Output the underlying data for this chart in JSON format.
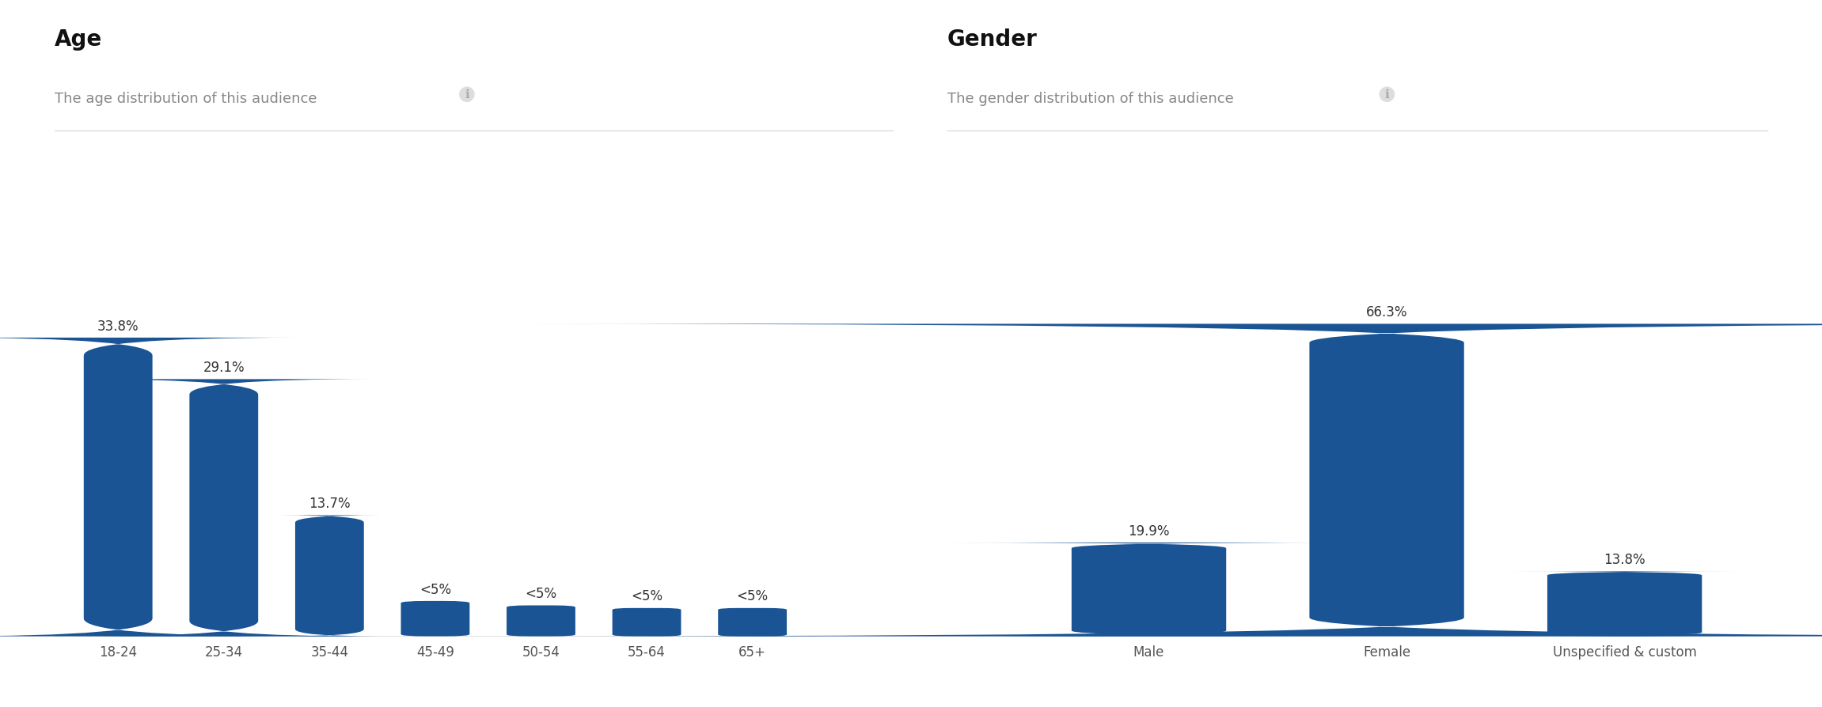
{
  "age": {
    "title": "Age",
    "subtitle": "The age distribution of this audience",
    "categories": [
      "18-24",
      "25-34",
      "35-44",
      "45-49",
      "50-54",
      "55-64",
      "65+"
    ],
    "values": [
      33.8,
      29.1,
      13.7,
      4.0,
      3.5,
      3.2,
      3.2
    ],
    "labels": [
      "33.8%",
      "29.1%",
      "13.7%",
      "<5%",
      "<5%",
      "<5%",
      "<5%"
    ],
    "ylim": [
      0,
      40
    ]
  },
  "gender": {
    "title": "Gender",
    "subtitle": "The gender distribution of this audience",
    "categories": [
      "Male",
      "Female",
      "Unspecified & custom"
    ],
    "values": [
      19.9,
      66.3,
      13.8
    ],
    "labels": [
      "19.9%",
      "66.3%",
      "13.8%"
    ],
    "ylim": [
      0,
      75
    ]
  },
  "bg_color": "#ffffff",
  "title_fontsize": 20,
  "subtitle_fontsize": 13,
  "label_fontsize": 12,
  "tick_fontsize": 12,
  "bar_color": "#1a5494",
  "title_color": "#111111",
  "subtitle_color": "#888888",
  "axis_line_color": "#dddddd",
  "label_color": "#333333"
}
